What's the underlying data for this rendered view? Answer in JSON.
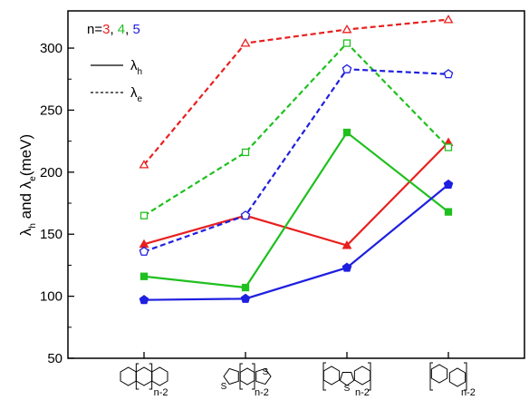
{
  "chart_data": {
    "type": "line",
    "ylabel": {
      "pre": "λ",
      "sub1": "h",
      "mid": " and λ",
      "sub2": "e",
      "post": "(meV)"
    },
    "ylim": [
      50,
      330
    ],
    "yticks": [
      50,
      100,
      150,
      200,
      250,
      300
    ],
    "x": [
      1,
      2,
      3,
      4
    ],
    "xlim": [
      0.25,
      4.75
    ],
    "xtick_labels_shown_as": "molecular structure drawings",
    "xtick_images": [
      "acene (linear fused rings, n-2 repeat)",
      "thienoacene (fused thiophene rings, n-2 repeat)",
      "dibenzothiophene (S bridge, n-2 repeat)",
      "phenylene (biphenyl rings, n-2 repeat)"
    ],
    "xtick_repeat_subscript": "n-2",
    "xtick_heteroatom_label": "S",
    "n_legend": {
      "prefix": "n=",
      "items": [
        {
          "n": "3",
          "color": "#e8201f"
        },
        {
          "n": "4",
          "color": "#1fc01f"
        },
        {
          "n": "5",
          "color": "#1f1fe0"
        }
      ],
      "sep": ", "
    },
    "style_legend": [
      {
        "line": "solid",
        "pre": "λ",
        "sub": "h"
      },
      {
        "line": "dashed",
        "pre": "λ",
        "sub": "e"
      }
    ],
    "series": [
      {
        "n": "3",
        "quantity": "h",
        "line": "solid",
        "color": "#e8201f",
        "marker": "filled-triangle",
        "values": [
          142,
          165,
          141,
          224
        ]
      },
      {
        "n": "4",
        "quantity": "h",
        "line": "solid",
        "color": "#1fc01f",
        "marker": "filled-square",
        "values": [
          116,
          107,
          232,
          168
        ]
      },
      {
        "n": "5",
        "quantity": "h",
        "line": "solid",
        "color": "#1f1fe0",
        "marker": "filled-pentagon",
        "values": [
          97,
          98,
          123,
          190
        ]
      },
      {
        "n": "3",
        "quantity": "e",
        "line": "dashed",
        "color": "#e8201f",
        "marker": "open-triangle",
        "values": [
          206,
          304,
          315,
          323
        ]
      },
      {
        "n": "4",
        "quantity": "e",
        "line": "dashed",
        "color": "#1fc01f",
        "marker": "open-square",
        "values": [
          165,
          216,
          304,
          220
        ]
      },
      {
        "n": "5",
        "quantity": "e",
        "line": "dashed",
        "color": "#1f1fe0",
        "marker": "open-pentagon",
        "values": [
          136,
          165,
          283,
          279
        ]
      }
    ],
    "grid": false
  }
}
